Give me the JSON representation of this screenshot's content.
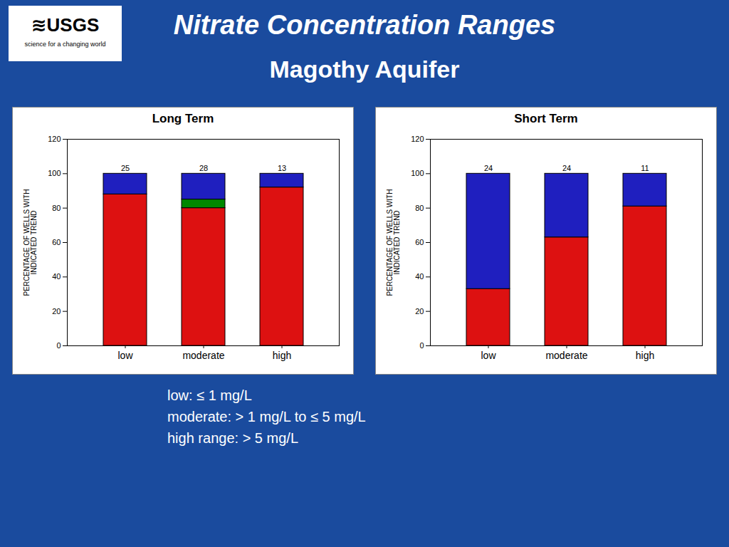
{
  "title": "Nitrate Concentration Ranges",
  "subtitle": "Magothy Aquifer",
  "annotations": [
    "low:  ≤ 1 mg/L",
    "moderate:  > 1 mg/L to ≤ 5 mg/L",
    "high range:  > 5 mg/L"
  ],
  "logo_text": [
    "≋USGS",
    "science for a changing world"
  ],
  "chart_data": [
    {
      "type": "bar",
      "stacked": true,
      "title": "Long Term",
      "categories": [
        "low",
        "moderate",
        "high"
      ],
      "series": [
        {
          "color": "#dd1111",
          "values": [
            88,
            80,
            92
          ]
        },
        {
          "color": "#008800",
          "values": [
            0,
            5,
            0
          ]
        },
        {
          "color": "#1f1fbf",
          "values": [
            12,
            15,
            8
          ]
        }
      ],
      "n": [
        25,
        28,
        13
      ],
      "ylabel": "PERCENTAGE OF WELLS WITH\nINDICATED TREND",
      "ylim": [
        0,
        120
      ],
      "yticks": [
        0,
        20,
        40,
        60,
        80,
        100,
        120
      ],
      "grid": false
    },
    {
      "type": "bar",
      "stacked": true,
      "title": "Short Term",
      "categories": [
        "low",
        "moderate",
        "high"
      ],
      "series": [
        {
          "color": "#dd1111",
          "values": [
            33,
            63,
            81
          ]
        },
        {
          "color": "#008800",
          "values": [
            0,
            0,
            0
          ]
        },
        {
          "color": "#1f1fbf",
          "values": [
            67,
            37,
            19
          ]
        }
      ],
      "n": [
        24,
        24,
        11
      ],
      "ylabel": "PERCENTAGE OF WELLS WITH\nINDICATED TREND",
      "ylim": [
        0,
        120
      ],
      "yticks": [
        0,
        20,
        40,
        60,
        80,
        100,
        120
      ],
      "grid": false
    }
  ]
}
